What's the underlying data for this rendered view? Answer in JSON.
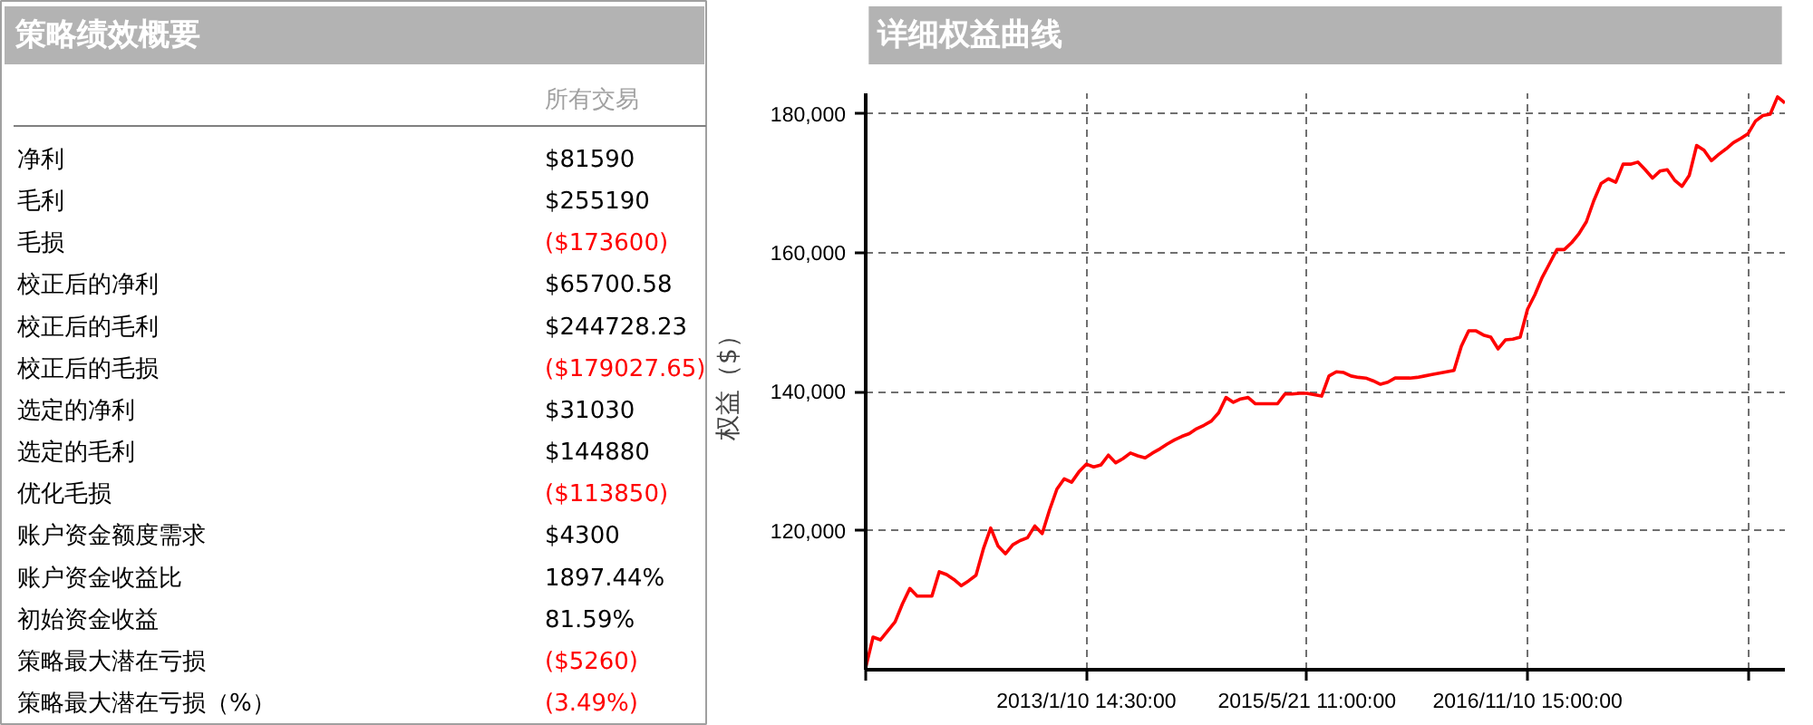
{
  "chart_data": [
    {
      "type": "other",
      "title": "策略绩效概要",
      "annotations": [
        "所有交易"
      ],
      "categories": [
        "净利",
        "毛利",
        "毛损",
        "校正后的净利",
        "校正后的毛利",
        "校正后的毛损",
        "选定的净利",
        "选定的毛利",
        "优化毛损",
        "账户资金额度需求",
        "账户资金收益比",
        "初始资金收益",
        "策略最大潜在亏损",
        "策略最大潜在亏损（%）"
      ],
      "values": [
        81590,
        255190,
        -173600,
        65700.58,
        244728.23,
        -179027.65,
        31030,
        144880,
        -113850,
        4300,
        1897.44,
        81.59,
        -5260,
        -3.49
      ],
      "value_labels": [
        "$81590",
        "$255190",
        "($173600)",
        "$65700.58",
        "$244728.23",
        "($179027.65)",
        "$31030",
        "$144880",
        "($113850)",
        "$4300",
        "1897.44%",
        "81.59%",
        "($5260)",
        "(3.49%)"
      ]
    },
    {
      "type": "line",
      "title": "详细权益曲线",
      "ylabel": "权益（$）",
      "grid": true,
      "categories": [
        null,
        null,
        null,
        null,
        null,
        null,
        null,
        null,
        null,
        null,
        null,
        null,
        null,
        null,
        null,
        null,
        null,
        null,
        null,
        null,
        null,
        null,
        null,
        null,
        null,
        null,
        null,
        null,
        null,
        null,
        "2013/1/10 14:30:00",
        null,
        null,
        null,
        null,
        null,
        null,
        null,
        null,
        null,
        null,
        null,
        null,
        null,
        null,
        null,
        null,
        null,
        null,
        null,
        null,
        null,
        null,
        null,
        null,
        null,
        null,
        null,
        null,
        null,
        "2015/5/21 11:00:00",
        null,
        null,
        null,
        null,
        null,
        null,
        null,
        null,
        null,
        null,
        null,
        null,
        null,
        null,
        null,
        null,
        null,
        null,
        null,
        null,
        null,
        null,
        null,
        null,
        null,
        null,
        null,
        null,
        null,
        "2016/11/10 15:00:00",
        null,
        null,
        null,
        null,
        null,
        null,
        null,
        null,
        null,
        null,
        null,
        null,
        null,
        null,
        null,
        null,
        null,
        null,
        null,
        null,
        null,
        null,
        null,
        null,
        null,
        null,
        null,
        null,
        null,
        null,
        null,
        null,
        null,
        null,
        null
      ],
      "ylim": [
        100000,
        183000
      ],
      "yticks": [
        {
          "value": 120000,
          "label": "120,000"
        },
        {
          "value": 140000,
          "label": "140,000"
        },
        {
          "value": 160000,
          "label": "160,000"
        },
        {
          "value": 180000,
          "label": "180,000"
        }
      ],
      "series": [
        {
          "color": "#ff0000",
          "values": [
            100300,
            104700,
            104300,
            105600,
            106900,
            109500,
            111700,
            110600,
            110600,
            110600,
            114100,
            113700,
            113000,
            112100,
            112800,
            113600,
            117400,
            120400,
            117800,
            116700,
            118000,
            118600,
            119000,
            120700,
            119600,
            123000,
            126000,
            127500,
            127000,
            128500,
            129600,
            129200,
            129500,
            130900,
            129800,
            130400,
            131200,
            130800,
            130500,
            131200,
            131800,
            132500,
            133100,
            133600,
            134000,
            134700,
            135200,
            135800,
            137000,
            139200,
            138500,
            139000,
            139200,
            138300,
            138300,
            138300,
            138300,
            139700,
            139700,
            139800,
            139800,
            139600,
            139400,
            142300,
            142900,
            142800,
            142300,
            142100,
            142000,
            141600,
            141100,
            141400,
            142000,
            142000,
            142000,
            142100,
            142300,
            142500,
            142700,
            142900,
            143100,
            146600,
            148800,
            148800,
            148200,
            147900,
            146200,
            147500,
            147600,
            147900,
            151900,
            154000,
            156500,
            158500,
            160500,
            160500,
            161500,
            162800,
            164500,
            167500,
            170000,
            170700,
            170200,
            172800,
            172800,
            173100,
            172000,
            170800,
            171800,
            172000,
            170500,
            169600,
            171200,
            175500,
            174800,
            173300,
            174200,
            175000,
            175900,
            176500,
            177200,
            179000,
            179800,
            180000,
            182500,
            181600
          ]
        }
      ]
    }
  ]
}
